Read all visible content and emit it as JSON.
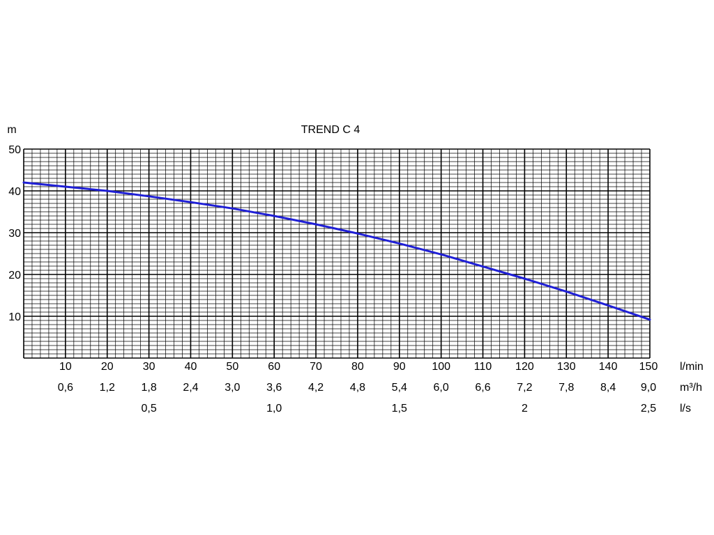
{
  "chart_data": {
    "type": "line",
    "title": "TREND C 4",
    "ylabel": "m",
    "ylim": [
      0,
      50
    ],
    "xlim": [
      0,
      150
    ],
    "grid": true,
    "y_ticks": [
      "10",
      "20",
      "30",
      "40",
      "50"
    ],
    "x_axes": [
      {
        "unit": "l/min",
        "ticks": [
          {
            "x": 10,
            "label": "10"
          },
          {
            "x": 20,
            "label": "20"
          },
          {
            "x": 30,
            "label": "30"
          },
          {
            "x": 40,
            "label": "40"
          },
          {
            "x": 50,
            "label": "50"
          },
          {
            "x": 60,
            "label": "60"
          },
          {
            "x": 70,
            "label": "70"
          },
          {
            "x": 80,
            "label": "80"
          },
          {
            "x": 90,
            "label": "90"
          },
          {
            "x": 100,
            "label": "100"
          },
          {
            "x": 110,
            "label": "110"
          },
          {
            "x": 120,
            "label": "120"
          },
          {
            "x": 130,
            "label": "130"
          },
          {
            "x": 140,
            "label": "140"
          },
          {
            "x": 150,
            "label": "150"
          }
        ]
      },
      {
        "unit": "m³/h",
        "ticks": [
          {
            "x": 10,
            "label": "0,6"
          },
          {
            "x": 20,
            "label": "1,2"
          },
          {
            "x": 30,
            "label": "1,8"
          },
          {
            "x": 40,
            "label": "2,4"
          },
          {
            "x": 50,
            "label": "3,0"
          },
          {
            "x": 60,
            "label": "3,6"
          },
          {
            "x": 70,
            "label": "4,2"
          },
          {
            "x": 80,
            "label": "4,8"
          },
          {
            "x": 90,
            "label": "5,4"
          },
          {
            "x": 100,
            "label": "6,0"
          },
          {
            "x": 110,
            "label": "6,6"
          },
          {
            "x": 120,
            "label": "7,2"
          },
          {
            "x": 130,
            "label": "7,8"
          },
          {
            "x": 140,
            "label": "8,4"
          },
          {
            "x": 150,
            "label": "9,0"
          }
        ]
      },
      {
        "unit": "l/s",
        "ticks": [
          {
            "x": 30,
            "label": "0,5"
          },
          {
            "x": 60,
            "label": "1,0"
          },
          {
            "x": 90,
            "label": "1,5"
          },
          {
            "x": 120,
            "label": "2"
          },
          {
            "x": 150,
            "label": "2,5"
          }
        ]
      }
    ],
    "series": [
      {
        "color": "#1f1fd6",
        "x": [
          0,
          10,
          20,
          30,
          40,
          50,
          60,
          70,
          80,
          90,
          100,
          110,
          120,
          130,
          140,
          150
        ],
        "y": [
          42,
          41,
          40,
          38.7,
          37.3,
          35.8,
          34,
          32,
          29.8,
          27.4,
          24.8,
          21.9,
          19,
          15.9,
          12.6,
          9.2
        ]
      }
    ]
  }
}
